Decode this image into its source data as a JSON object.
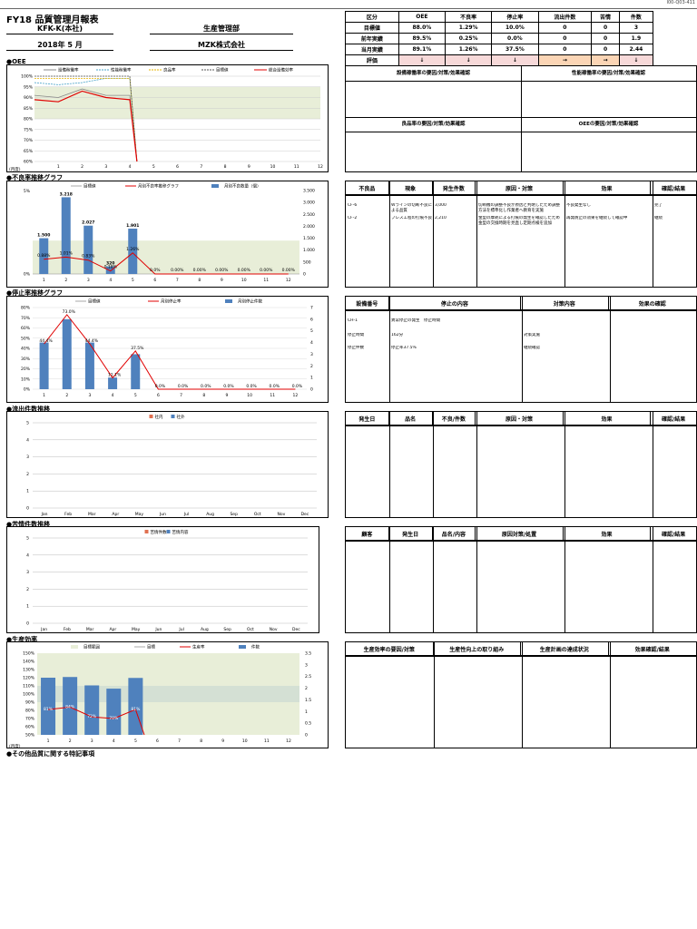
{
  "doc_code": "I00-Q03-411",
  "title": "FY18 品質管理月報表",
  "header": {
    "plant": "KFK-K(本社)",
    "dept_label": "生産管理部",
    "period": "2018年 5 月",
    "company": "MZK株式会社"
  },
  "kpi_table": {
    "columns": [
      "区分",
      "OEE",
      "不良率",
      "停止率",
      "流出件数",
      "苦情",
      "件数"
    ],
    "rows": [
      {
        "label": "目標値",
        "values": [
          "88.0%",
          "1.29%",
          "10.0%",
          "0",
          "0",
          "3"
        ]
      },
      {
        "label": "前年実績",
        "values": [
          "89.5%",
          "0.25%",
          "0.0%",
          "0",
          "0",
          "1.9"
        ]
      },
      {
        "label": "当月実績",
        "values": [
          "89.1%",
          "1.26%",
          "37.5%",
          "0",
          "0",
          "2.44"
        ]
      },
      {
        "label": "評価",
        "values": [
          "↓",
          "↓",
          "↓",
          "→",
          "→",
          "↓"
        ]
      }
    ]
  },
  "sections": {
    "oee": "●OEE",
    "defect": "●不良率推移グラフ",
    "stop": "●停止率推移グラフ",
    "outflow": "●流出件数推移",
    "complaint": "●苦情件数推移",
    "productivity": "●生産効率",
    "notes": "●その他品質に関する特記事項"
  },
  "oee_boxes": {
    "tl": "設備稼働率の要因/対策/効果確認",
    "tr": "性能稼働率の要因/対策/効果確認",
    "bl": "良品率の要因/対策/効果確認",
    "br": "OEEの要因/対策/効果確認"
  },
  "defect_table": {
    "columns": [
      "不良品",
      "現象",
      "発生件数",
      "原因・対策",
      "効果",
      "確認/結果"
    ],
    "rows": [
      {
        "c0": "CF-6",
        "c1": "Wラインの切断不良による品質",
        "c2": "3,000",
        "c3": "切断機の調整不良が原因と判明したため調整方法を標準化し作業者へ教育を実施",
        "c4": "不良発生なし",
        "c5": "完了"
      },
      {
        "c0": "CF-2",
        "c1": "プレス工程の打痕不良",
        "c2": "2,210",
        "c3": "金型の摩耗による打痕の発生を確認したため金型の交換時期を見直し定期点検を追加",
        "c4": "再発防止の効果を継続して確認中",
        "c5": "継続"
      }
    ]
  },
  "stop_table": {
    "columns": [
      "設備番号",
      "停止の内容",
      "対策内容",
      "効果の確認"
    ],
    "rows": [
      {
        "c0": "CH-1",
        "c1": "異常停止の発生　停止時間"
      },
      {
        "c0": "停止時間",
        "c1": "162分",
        "c2": "対策実施"
      },
      {
        "c0": "停止件数",
        "c1": "停止率37.5%",
        "c2": "継続確認"
      }
    ]
  },
  "outflow_table": {
    "columns": [
      "発生日",
      "品名",
      "不良/件数",
      "原因・対策",
      "効果",
      "確認/結果"
    ]
  },
  "complaint_table": {
    "columns": [
      "顧客",
      "発生日",
      "品名/内容",
      "原因対策/処置",
      "効果",
      "確認/結果"
    ]
  },
  "prod_table": {
    "columns": [
      "生産効率の要因/対策",
      "生産性向上の取り組み",
      "生産計画の達成状況",
      "効果確認/結果"
    ]
  },
  "chart_data": [
    {
      "type": "line",
      "name": "OEE",
      "x": [
        1,
        2,
        3,
        4,
        5,
        6,
        7,
        8,
        9,
        10,
        11,
        12
      ],
      "series": [
        {
          "name": "設備稼働率",
          "values": [
            91,
            90,
            94,
            91,
            91,
            null,
            null,
            null,
            null,
            null,
            null,
            null
          ]
        },
        {
          "name": "性能稼働率",
          "values": [
            97,
            96,
            97,
            99,
            99,
            null,
            null,
            null,
            null,
            null,
            null,
            null
          ]
        },
        {
          "name": "良品率",
          "values": [
            99,
            99,
            99,
            99,
            99,
            null,
            null,
            null,
            null,
            null,
            null,
            null
          ]
        },
        {
          "name": "目標値",
          "values": [
            100,
            100,
            100,
            100,
            100,
            null,
            null,
            null,
            null,
            null,
            null,
            null
          ]
        },
        {
          "name": "総合設備効率",
          "values": [
            89,
            88,
            93,
            90,
            89,
            null,
            null,
            null,
            null,
            null,
            null,
            null
          ]
        }
      ],
      "band": [
        80,
        95
      ],
      "ylim": [
        60,
        100
      ],
      "yticks": [
        "100%",
        "95%",
        "90%",
        "85%",
        "80%",
        "75%",
        "70%",
        "65%",
        "60%"
      ],
      "xlabel_note": "(月度)"
    },
    {
      "type": "bar+line",
      "name": "不良率",
      "x": [
        1,
        2,
        3,
        4,
        5,
        6,
        7,
        8,
        9,
        10,
        11,
        12
      ],
      "bar_values": [
        1.5,
        3.218,
        2.027,
        0.32,
        1.901,
        0,
        0,
        0,
        0,
        0,
        0,
        0
      ],
      "bar_labels": [
        "1.500",
        "3.218",
        "2.027",
        "320",
        "1.901",
        "",
        "",
        "",
        "",
        "",
        "",
        ""
      ],
      "line_values": [
        0.88,
        1.01,
        0.83,
        0.18,
        1.26,
        0,
        0,
        0,
        0,
        0,
        0,
        0
      ],
      "line_labels": [
        "0.88%",
        "1.01%",
        "0.83%",
        "0.18%",
        "1.26%",
        "0.0%",
        "0.00%",
        "0.00%",
        "0.00%",
        "0.00%",
        "0.00%",
        "0.00%"
      ],
      "legend": [
        "目標値",
        "月別不良率推移グラフ",
        "月別不良数量（個）"
      ],
      "yleft": [
        "5%",
        "0%"
      ],
      "yright": [
        "3.500",
        "3.000",
        "2.500",
        "2.000",
        "1.500",
        "1.000",
        "500",
        "0"
      ],
      "band": [
        0,
        2.0
      ]
    },
    {
      "type": "bar+line",
      "name": "停止率",
      "x": [
        1,
        2,
        3,
        4,
        5,
        6,
        7,
        8,
        9,
        10,
        11,
        12
      ],
      "bar_values": [
        4,
        6,
        4,
        1,
        3,
        0,
        0,
        0,
        0,
        0,
        0,
        0
      ],
      "line_values": [
        44.4,
        73.0,
        44.4,
        11.1,
        37.5,
        0,
        0,
        0,
        0,
        0,
        0,
        0
      ],
      "line_labels": [
        "44.4%",
        "73.0%",
        "44.4%",
        "11.1%",
        "37.5%",
        "0.0%",
        "0.0%",
        "0.0%",
        "0.0%",
        "0.0%",
        "0.0%",
        "0.0%"
      ],
      "legend": [
        "目標値",
        "月別停止率",
        "月別停止件数"
      ],
      "yleft": [
        "80%",
        "70%",
        "60%",
        "50%",
        "40%",
        "30%",
        "20%",
        "10%",
        "0%"
      ],
      "yright": [
        "7",
        "6",
        "5",
        "4",
        "3",
        "2",
        "1",
        "0"
      ]
    },
    {
      "type": "bar",
      "name": "流出件数",
      "months": [
        "Jan",
        "Feb",
        "Mar",
        "Apr",
        "May",
        "Jun",
        "Jul",
        "Aug",
        "Sep",
        "Oct",
        "Nov",
        "Dec"
      ],
      "legend": [
        "社内",
        "社外"
      ],
      "yticks": [
        "5",
        "4",
        "3",
        "2",
        "1",
        "0"
      ]
    },
    {
      "type": "bar",
      "name": "苦情件数",
      "months": [
        "Jan",
        "Feb",
        "Mar",
        "Apr",
        "May",
        "Jun",
        "Jul",
        "Aug",
        "Sep",
        "Oct",
        "Nov",
        "Dec"
      ],
      "legend": [
        "苦情件数",
        "苦情内容"
      ],
      "yticks": [
        "5",
        "4",
        "3",
        "2",
        "1",
        "0"
      ]
    },
    {
      "type": "bar+line",
      "name": "生産効率",
      "x": [
        1,
        2,
        3,
        4,
        5,
        6,
        7,
        8,
        9,
        10,
        11,
        12
      ],
      "bar_values": [
        2.45,
        2.48,
        2.12,
        1.98,
        2.44,
        0,
        0,
        0,
        0,
        0,
        0,
        0
      ],
      "line_values": [
        81,
        84,
        72,
        70,
        81,
        null,
        null,
        null,
        null,
        null,
        null,
        null
      ],
      "line_labels": [
        "81%",
        "84%",
        "72%",
        "70%",
        "81%",
        "",
        "",
        "",
        "",
        "",
        "",
        ""
      ],
      "legend": [
        "目標範囲",
        "目標",
        "生産率",
        "件数"
      ],
      "yleft": [
        "150%",
        "140%",
        "130%",
        "120%",
        "110%",
        "100%",
        "90%",
        "80%",
        "70%",
        "60%",
        "50%"
      ],
      "yright": [
        "3.5",
        "3",
        "2.5",
        "2",
        "1.5",
        "1",
        "0.5",
        "0"
      ],
      "xlabel_note": "(月度)"
    }
  ]
}
